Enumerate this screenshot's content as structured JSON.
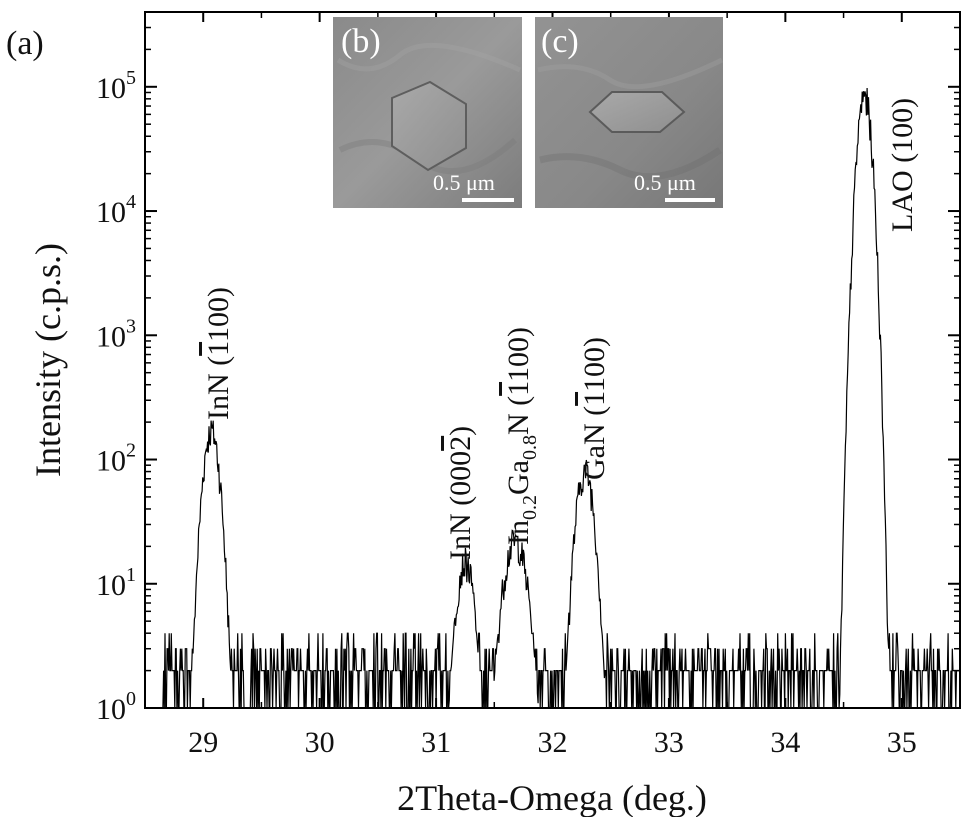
{
  "panel_label": "(a)",
  "chart_data": {
    "type": "line",
    "xlabel": "2Theta-Omega (deg.)",
    "ylabel": "Intensity (c.p.s.)",
    "xlim": [
      28.5,
      35.5
    ],
    "ylim": [
      1,
      400000
    ],
    "y_scale": "log",
    "grid": false,
    "legend": "none",
    "line_color": "#000000",
    "x_ticks": [
      29,
      30,
      31,
      32,
      33,
      34,
      35
    ],
    "y_ticks": [
      {
        "value": 1,
        "base": "10",
        "exp": "0"
      },
      {
        "value": 10,
        "base": "10",
        "exp": "1"
      },
      {
        "value": 100,
        "base": "10",
        "exp": "2"
      },
      {
        "value": 1000,
        "base": "10",
        "exp": "3"
      },
      {
        "value": 10000,
        "base": "10",
        "exp": "4"
      },
      {
        "value": 100000,
        "base": "10",
        "exp": "5"
      }
    ],
    "noise_floor": 2,
    "noise_max": 4,
    "noise_ranges": [
      [
        28.65,
        29.35
      ],
      [
        29.4,
        30.9
      ],
      [
        30.9,
        31.95
      ],
      [
        31.95,
        32.65
      ],
      [
        32.65,
        34.2
      ],
      [
        34.2,
        35.5
      ]
    ],
    "peaks": [
      {
        "center": 29.07,
        "amplitude": 170,
        "width": 0.055,
        "annotation": {
          "text": "InN (1̅100)",
          "pre": "InN (",
          "bar": "1",
          "post": "100)"
        }
      },
      {
        "center": 31.25,
        "amplitude": 15,
        "width": 0.06,
        "annotation": {
          "text": "InN (0002̅)",
          "pre": "InN (000",
          "bar": "2",
          "post": ")"
        }
      },
      {
        "center": 31.68,
        "amplitude": 22,
        "width": 0.08,
        "annotation": {
          "text": "In0.2Ga0.8N (1̅100)",
          "pre": "In",
          "sub1": "0.2",
          "mid": "Ga",
          "sub2": "0.8",
          "mid2": "N (",
          "bar": "1",
          "post": "100)"
        }
      },
      {
        "center": 32.28,
        "amplitude": 80,
        "width": 0.06,
        "annotation": {
          "text": "GaN (1̅100)",
          "pre": "GaN (",
          "bar": "1",
          "post": "100)"
        }
      },
      {
        "center": 34.68,
        "amplitude": 85000,
        "width": 0.045,
        "annotation": {
          "text": "LAO (100)",
          "pre": "LAO (100)",
          "bar": "",
          "post": ""
        }
      }
    ]
  },
  "insets": [
    {
      "label": "(b)",
      "scale_bar": "0.5 μm",
      "feature": "hexagonal-crystal-top"
    },
    {
      "label": "(c)",
      "scale_bar": "0.5 μm",
      "feature": "hexagonal-crystal-tilted"
    }
  ]
}
